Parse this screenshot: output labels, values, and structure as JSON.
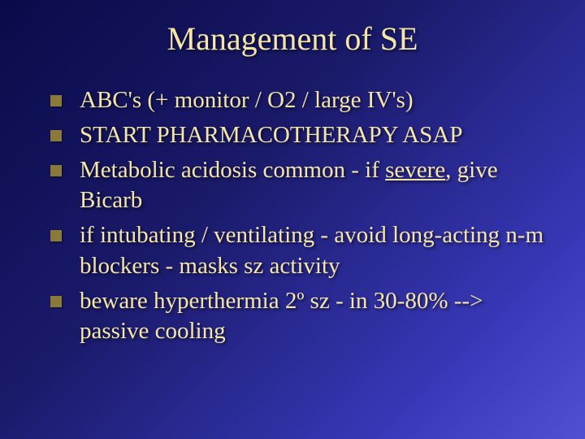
{
  "slide": {
    "title": "Management of SE",
    "title_fontsize": 40,
    "body_fontsize": 29,
    "text_color": "#f5e6a8",
    "bullet_color": "#8a7a3a",
    "background_gradient": [
      "#0a0a4a",
      "#1a1a6a",
      "#3838b8",
      "#5050d0"
    ],
    "font_family": "Times New Roman",
    "bullets": [
      {
        "text_before": "ABC's  (+ monitor / O2 / large IV's)",
        "underlined": "",
        "text_after": ""
      },
      {
        "text_before": "START PHARMACOTHERAPY ASAP",
        "underlined": "",
        "text_after": ""
      },
      {
        "text_before": "Metabolic acidosis common - if ",
        "underlined": "severe",
        "text_after": ", give Bicarb"
      },
      {
        "text_before": "if intubating / ventilating - avoid long-acting n-m blockers - masks sz activity",
        "underlined": "",
        "text_after": ""
      },
      {
        "text_before": "beware hyperthermia 2º sz - in 30-80% --> passive cooling",
        "underlined": "",
        "text_after": ""
      }
    ]
  }
}
